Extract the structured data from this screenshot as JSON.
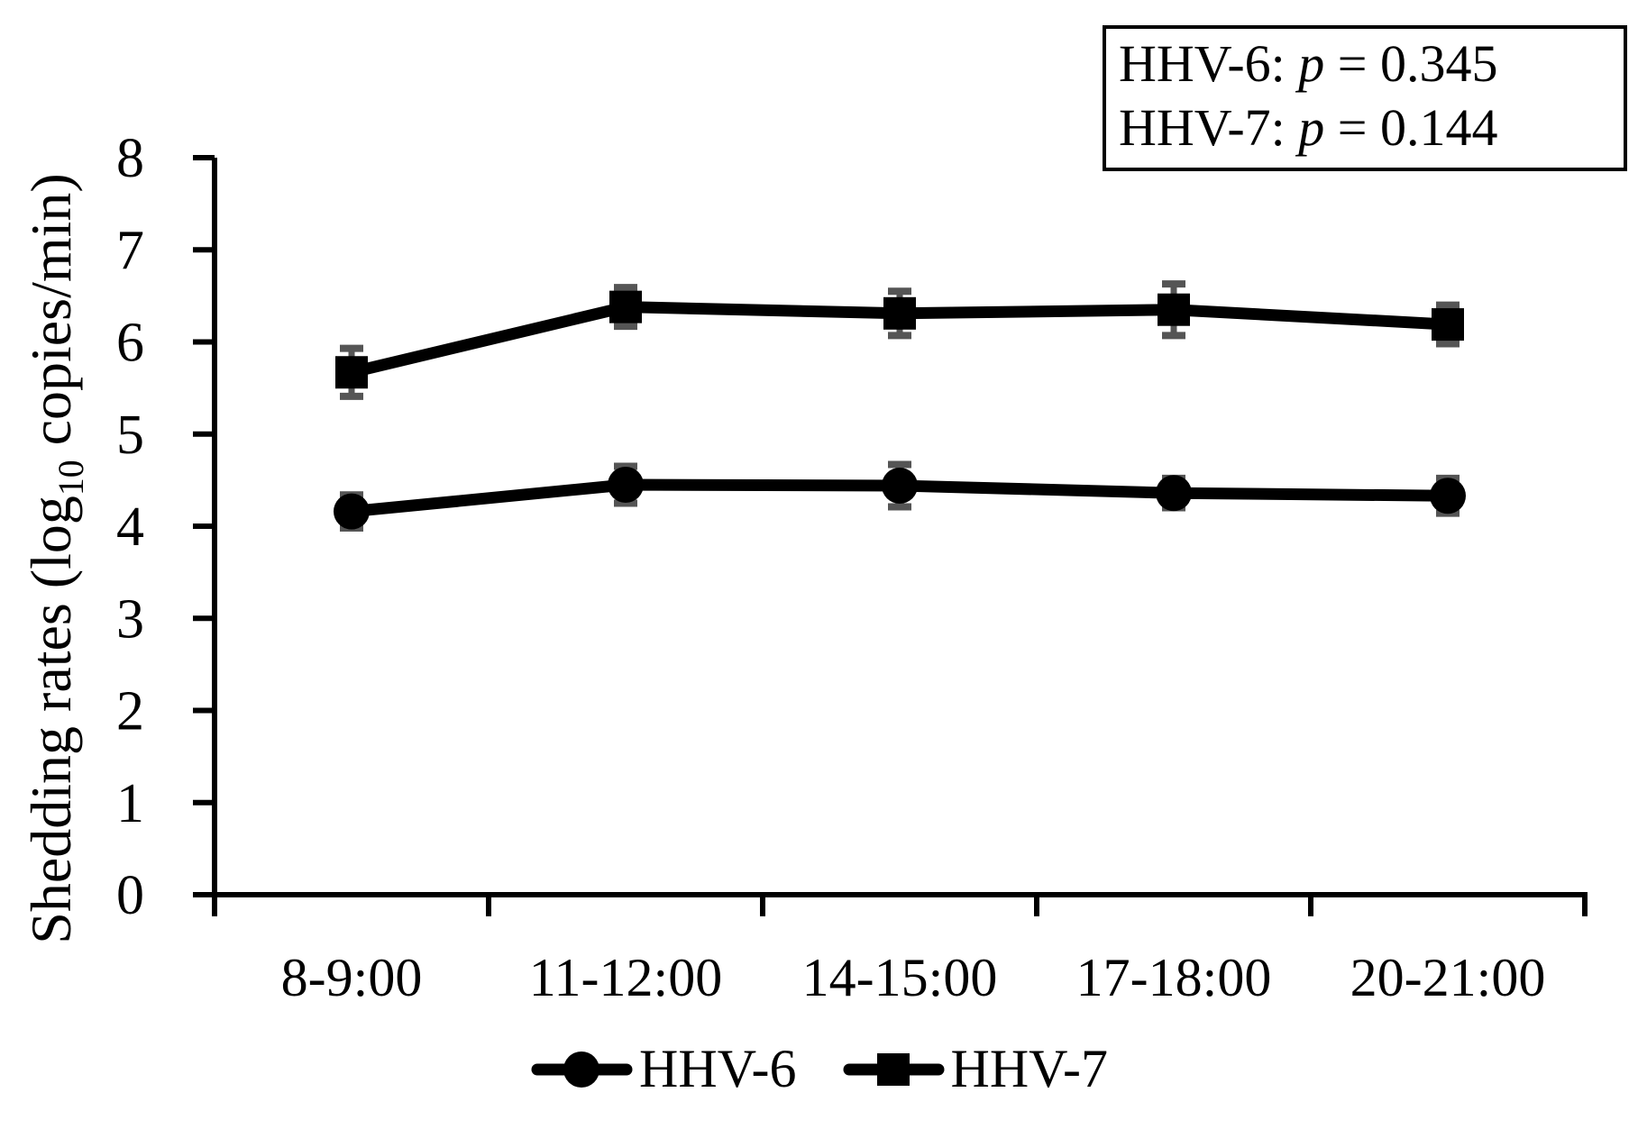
{
  "chart_data": {
    "type": "line",
    "title": "",
    "xlabel": "",
    "ylabel_parts": {
      "pre": "Shedding rates (log",
      "sub": "10",
      "post": " copies/min)"
    },
    "categories": [
      "8-9:00",
      "11-12:00",
      "14-15:00",
      "17-18:00",
      "20-21:00"
    ],
    "series": [
      {
        "name": "HHV-6",
        "marker": "circle",
        "values": [
          4.16,
          4.45,
          4.44,
          4.36,
          4.33
        ],
        "errors": [
          0.18,
          0.2,
          0.23,
          0.16,
          0.19
        ]
      },
      {
        "name": "HHV-7",
        "marker": "square",
        "values": [
          5.67,
          6.38,
          6.31,
          6.35,
          6.19
        ],
        "errors": [
          0.26,
          0.21,
          0.24,
          0.28,
          0.21
        ]
      }
    ],
    "y_ticks": [
      0,
      1,
      2,
      3,
      4,
      5,
      6,
      7,
      8
    ],
    "ylim": [
      0,
      8
    ],
    "grid": false,
    "legend_position": "bottom",
    "annotation": {
      "lines": [
        {
          "series_label": "HHV-6: ",
          "p_symbol": "p",
          "eq_value": " = 0.345"
        },
        {
          "series_label": "HHV-7: ",
          "p_symbol": "p",
          "eq_value": " = 0.144"
        }
      ]
    },
    "colors": {
      "series": "#000000",
      "error_bars": "#555555",
      "axis": "#000000",
      "background": "#ffffff"
    }
  }
}
